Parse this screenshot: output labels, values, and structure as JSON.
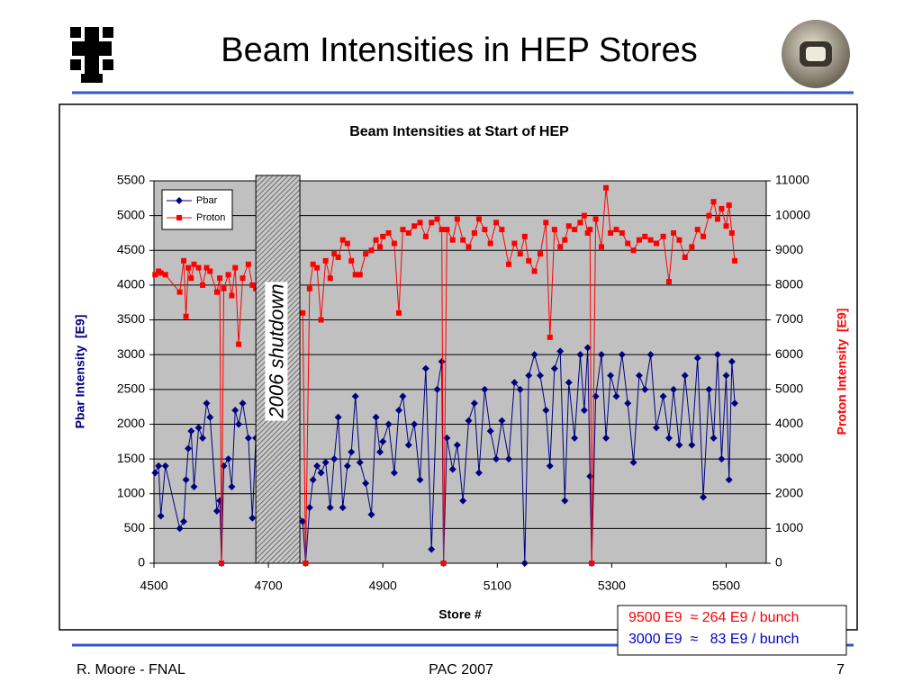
{
  "title": "Beam Intensities in HEP Stores",
  "chart_data": {
    "type": "line",
    "title": "Beam Intensities at Start of HEP",
    "x_label": "Store #",
    "y_label": "Pbar Intensity  [E9]",
    "y2_label": "Proton Intensity  [E9]",
    "xlim": [
      4500,
      5570
    ],
    "xticks": [
      4500,
      4700,
      4900,
      5100,
      5300,
      5500
    ],
    "ylim": [
      0,
      5500
    ],
    "yticks": [
      0,
      500,
      1000,
      1500,
      2000,
      2500,
      3000,
      3500,
      4000,
      4500,
      5000,
      5500
    ],
    "y2lim": [
      0,
      11000
    ],
    "y2ticks": [
      0,
      1000,
      2000,
      3000,
      4000,
      5000,
      6000,
      7000,
      8000,
      9000,
      10000,
      11000
    ],
    "grid": true,
    "legend": "upper left",
    "shaded_region": {
      "xlim": [
        4678,
        4755
      ],
      "label": "2006 shutdown"
    },
    "x": [
      4502,
      4508,
      4512,
      4520,
      4545,
      4552,
      4556,
      4560,
      4565,
      4570,
      4578,
      4585,
      4592,
      4598,
      4610,
      4615,
      4618,
      4622,
      4630,
      4636,
      4642,
      4648,
      4655,
      4665,
      4672,
      4678,
      4760,
      4765,
      4772,
      4778,
      4785,
      4792,
      4800,
      4808,
      4815,
      4822,
      4830,
      4838,
      4845,
      4852,
      4860,
      4870,
      4880,
      4888,
      4895,
      4900,
      4910,
      4920,
      4928,
      4935,
      4945,
      4955,
      4965,
      4975,
      4985,
      4995,
      5003,
      5006,
      5012,
      5022,
      5030,
      5040,
      5050,
      5060,
      5068,
      5078,
      5088,
      5098,
      5108,
      5120,
      5130,
      5140,
      5148,
      5155,
      5165,
      5175,
      5185,
      5192,
      5200,
      5210,
      5218,
      5225,
      5235,
      5245,
      5252,
      5258,
      5262,
      5265,
      5272,
      5282,
      5290,
      5298,
      5308,
      5318,
      5328,
      5338,
      5348,
      5358,
      5368,
      5378,
      5390,
      5400,
      5408,
      5418,
      5428,
      5440,
      5450,
      5460,
      5470,
      5478,
      5485,
      5492,
      5500,
      5505,
      5510,
      5515
    ],
    "series": [
      {
        "name": "Pbar",
        "color": "#000080",
        "marker": "diamond",
        "values": [
          1300,
          1400,
          680,
          1400,
          500,
          600,
          1200,
          1650,
          1900,
          1100,
          1950,
          1800,
          2300,
          2100,
          750,
          900,
          0,
          1400,
          1500,
          1100,
          2200,
          2000,
          2300,
          1800,
          650,
          1800,
          600,
          0,
          800,
          1200,
          1400,
          1300,
          1450,
          800,
          1500,
          2100,
          800,
          1400,
          1600,
          2400,
          1450,
          1150,
          700,
          2100,
          1600,
          1750,
          2000,
          1300,
          2200,
          2400,
          1700,
          2000,
          1200,
          2800,
          200,
          2500,
          2900,
          0,
          1800,
          1350,
          1700,
          900,
          2050,
          2300,
          1300,
          2500,
          1900,
          1500,
          2050,
          1500,
          2600,
          2500,
          0,
          2700,
          3000,
          2700,
          2200,
          1400,
          2800,
          3050,
          900,
          2600,
          1800,
          3000,
          2200,
          3100,
          1250,
          0,
          2400,
          3000,
          1800,
          2700,
          2400,
          3000,
          2300,
          1450,
          2700,
          2500,
          3000,
          1950,
          2400,
          1800,
          2500,
          1700,
          2700,
          1700,
          2950,
          950,
          2500,
          1800,
          3000,
          1500,
          2700,
          1200,
          2900,
          2300
        ]
      },
      {
        "name": "Proton",
        "color": "#ff0000",
        "marker": "square",
        "axis": "y2",
        "values": [
          8300,
          8400,
          8350,
          8300,
          7800,
          8700,
          7100,
          8500,
          8200,
          8600,
          8500,
          8000,
          8500,
          8400,
          7800,
          8200,
          0,
          7900,
          8300,
          7700,
          8500,
          6300,
          8200,
          8600,
          8000,
          7900,
          7200,
          0,
          7900,
          8600,
          8500,
          7000,
          8700,
          8200,
          8900,
          8800,
          9300,
          9200,
          8700,
          8300,
          8300,
          8900,
          9000,
          9300,
          9100,
          9400,
          9500,
          9200,
          7200,
          9600,
          9500,
          9700,
          9800,
          9400,
          9800,
          9900,
          9600,
          0,
          9600,
          9300,
          9900,
          9300,
          9100,
          9500,
          9900,
          9600,
          9200,
          9800,
          9600,
          8600,
          9200,
          8900,
          9400,
          8700,
          8400,
          8900,
          9800,
          6500,
          9600,
          9100,
          9300,
          9700,
          9600,
          9800,
          10000,
          9500,
          9600,
          0,
          9900,
          9100,
          10800,
          9500,
          9600,
          9500,
          9200,
          9000,
          9300,
          9400,
          9300,
          9200,
          9400,
          8100,
          9500,
          9300,
          8800,
          9100,
          9600,
          9400,
          10000,
          10400,
          9900,
          10200,
          9700,
          10300,
          9500,
          8700
        ]
      }
    ]
  },
  "note": {
    "lines": [
      {
        "text": "9500 E9  ≈ 264 E9 / bunch",
        "color": "#ff0000"
      },
      {
        "text": "3000 E9  ≈   83 E9 / bunch",
        "color": "#0000cc"
      }
    ]
  },
  "footer": {
    "left": "R. Moore - FNAL",
    "center": "PAC 2007",
    "right": "7"
  }
}
